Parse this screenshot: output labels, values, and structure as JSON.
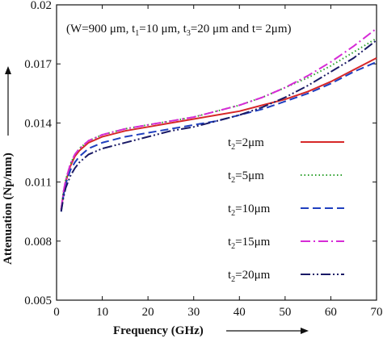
{
  "chart_data": {
    "type": "line",
    "title": "",
    "annotation_main": "(W=900 μm, t",
    "annotation_segments": [
      {
        "text": "(W=900 μm, t",
        "sub": false
      },
      {
        "text": "1",
        "sub": true
      },
      {
        "text": "=10 μm, t",
        "sub": false
      },
      {
        "text": "3",
        "sub": true
      },
      {
        "text": "=20 μm and t= 2μm)",
        "sub": false
      }
    ],
    "xlabel": "Frequency (GHz)",
    "ylabel": "Attenuation (Np/mm)",
    "xlim": [
      0,
      70
    ],
    "ylim": [
      0.005,
      0.02
    ],
    "xticks": [
      "0",
      "10",
      "20",
      "30",
      "40",
      "50",
      "60",
      "70"
    ],
    "yticks": [
      "0.005",
      "0.008",
      "0.011",
      "0.014",
      "0.017",
      "0.02"
    ],
    "legend_position": "right",
    "x": [
      1,
      1.5,
      2,
      3,
      4,
      5,
      7,
      10,
      15,
      20,
      25,
      30,
      35,
      40,
      45,
      50,
      55,
      60,
      65,
      70
    ],
    "series": [
      {
        "name_prefix": "t",
        "name_sub": "2",
        "name_suffix": "=2μm",
        "color": "#d62728",
        "dash": "",
        "values": [
          0.0096,
          0.0104,
          0.011,
          0.0118,
          0.0123,
          0.0126,
          0.013,
          0.0133,
          0.0136,
          0.0138,
          0.014,
          0.0142,
          0.0144,
          0.0146,
          0.0149,
          0.0152,
          0.0156,
          0.0161,
          0.0167,
          0.0173
        ]
      },
      {
        "name_prefix": "t",
        "name_sub": "2",
        "name_suffix": "=5μm",
        "color": "#2ca02c",
        "dash": "1.5,3",
        "values": [
          0.0096,
          0.0105,
          0.0111,
          0.0119,
          0.0124,
          0.0127,
          0.0131,
          0.0134,
          0.0137,
          0.0139,
          0.0141,
          0.0143,
          0.0146,
          0.0149,
          0.0153,
          0.0158,
          0.0163,
          0.0169,
          0.0176,
          0.0183
        ]
      },
      {
        "name_prefix": "t",
        "name_sub": "2",
        "name_suffix": "=10μm",
        "color": "#1f3fbf",
        "dash": "10,5",
        "values": [
          0.0095,
          0.0103,
          0.0109,
          0.0116,
          0.012,
          0.0123,
          0.0127,
          0.013,
          0.0133,
          0.0135,
          0.0137,
          0.0139,
          0.0141,
          0.0144,
          0.0147,
          0.0151,
          0.0155,
          0.016,
          0.0166,
          0.0171
        ]
      },
      {
        "name_prefix": "t",
        "name_sub": "2",
        "name_suffix": "=15μm",
        "color": "#d62bd6",
        "dash": "12,4,2,4",
        "values": [
          0.0096,
          0.0105,
          0.0111,
          0.0119,
          0.0124,
          0.0127,
          0.0131,
          0.0134,
          0.0137,
          0.0139,
          0.0141,
          0.0143,
          0.0146,
          0.0149,
          0.0153,
          0.0158,
          0.0164,
          0.0171,
          0.0179,
          0.0188
        ]
      },
      {
        "name_prefix": "t",
        "name_sub": "2",
        "name_suffix": "=20μm",
        "color": "#1a1a66",
        "dash": "12,3,2,3,2,3",
        "values": [
          0.0095,
          0.0102,
          0.0107,
          0.0113,
          0.0117,
          0.012,
          0.0124,
          0.0127,
          0.013,
          0.0133,
          0.0136,
          0.0138,
          0.0141,
          0.0144,
          0.0148,
          0.0153,
          0.0159,
          0.0166,
          0.0173,
          0.0182
        ]
      }
    ]
  }
}
